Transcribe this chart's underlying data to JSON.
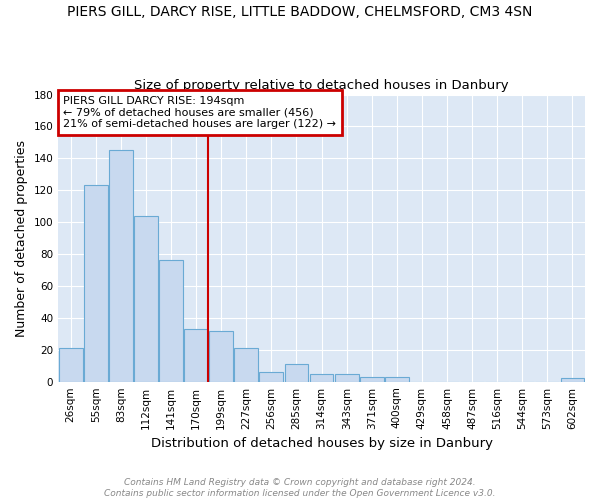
{
  "title": "PIERS GILL, DARCY RISE, LITTLE BADDOW, CHELMSFORD, CM3 4SN",
  "subtitle": "Size of property relative to detached houses in Danbury",
  "xlabel": "Distribution of detached houses by size in Danbury",
  "ylabel": "Number of detached properties",
  "categories": [
    "26sqm",
    "55sqm",
    "83sqm",
    "112sqm",
    "141sqm",
    "170sqm",
    "199sqm",
    "227sqm",
    "256sqm",
    "285sqm",
    "314sqm",
    "343sqm",
    "371sqm",
    "400sqm",
    "429sqm",
    "458sqm",
    "487sqm",
    "516sqm",
    "544sqm",
    "573sqm",
    "602sqm"
  ],
  "values": [
    21,
    123,
    145,
    104,
    76,
    33,
    32,
    21,
    6,
    11,
    5,
    5,
    3,
    3,
    0,
    0,
    0,
    0,
    0,
    0,
    2
  ],
  "bar_color": "#c8d9ef",
  "bar_edge_color": "#6aaad4",
  "vline_x_index": 6,
  "vline_color": "#cc0000",
  "annotation_line1": "PIERS GILL DARCY RISE: 194sqm",
  "annotation_line2": "← 79% of detached houses are smaller (456)",
  "annotation_line3": "21% of semi-detached houses are larger (122) →",
  "annotation_box_edge_color": "#cc0000",
  "ylim": [
    0,
    180
  ],
  "yticks": [
    0,
    20,
    40,
    60,
    80,
    100,
    120,
    140,
    160,
    180
  ],
  "footer_line1": "Contains HM Land Registry data © Crown copyright and database right 2024.",
  "footer_line2": "Contains public sector information licensed under the Open Government Licence v3.0.",
  "plot_bg_color": "#dde8f5",
  "fig_bg_color": "#ffffff",
  "grid_color": "#ffffff",
  "title_fontsize": 10,
  "subtitle_fontsize": 9.5,
  "tick_fontsize": 7.5,
  "ylabel_fontsize": 9,
  "xlabel_fontsize": 9.5,
  "annotation_fontsize": 8,
  "footer_fontsize": 6.5
}
